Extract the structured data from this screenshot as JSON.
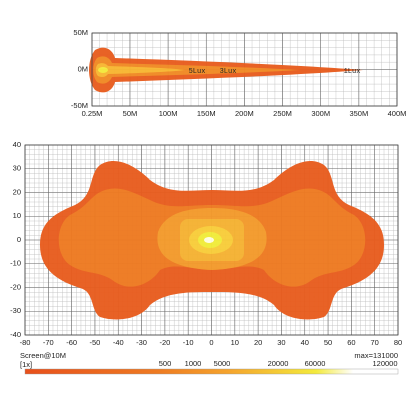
{
  "chart_data": [
    {
      "type": "isolux",
      "xlim": [
        0.25,
        400
      ],
      "xticks": [
        {
          "value": 0.25,
          "label": "0.25M"
        },
        {
          "value": 50,
          "label": "50M"
        },
        {
          "value": 100,
          "label": "100M"
        },
        {
          "value": 150,
          "label": "150M"
        },
        {
          "value": 200,
          "label": "200M"
        },
        {
          "value": 250,
          "label": "250M"
        },
        {
          "value": 300,
          "label": "300M"
        },
        {
          "value": 350,
          "label": "350M"
        },
        {
          "value": 400,
          "label": "400M"
        }
      ],
      "ylim": [
        -50,
        50
      ],
      "yticks": [
        {
          "value": 50,
          "label": "50M"
        },
        {
          "value": 0,
          "label": "0M"
        },
        {
          "value": -50,
          "label": "-50M"
        }
      ],
      "annotations": [
        "5Lux",
        "3Lux",
        "1Lux"
      ]
    },
    {
      "type": "isolux",
      "xlim": [
        -80,
        80
      ],
      "xticks": [
        -80,
        -70,
        -60,
        -50,
        -40,
        -30,
        -20,
        -10,
        0,
        10,
        20,
        30,
        40,
        50,
        60,
        70,
        80
      ],
      "ylim": [
        -40,
        40
      ],
      "yticks": [
        40,
        30,
        20,
        10,
        0,
        -10,
        -20,
        -30,
        -40
      ]
    }
  ],
  "legend": {
    "title": "Screen@10M",
    "scale": "[1x]",
    "max": "max=131000",
    "levels": [
      500,
      1000,
      5000,
      20000,
      60000,
      120000
    ]
  }
}
